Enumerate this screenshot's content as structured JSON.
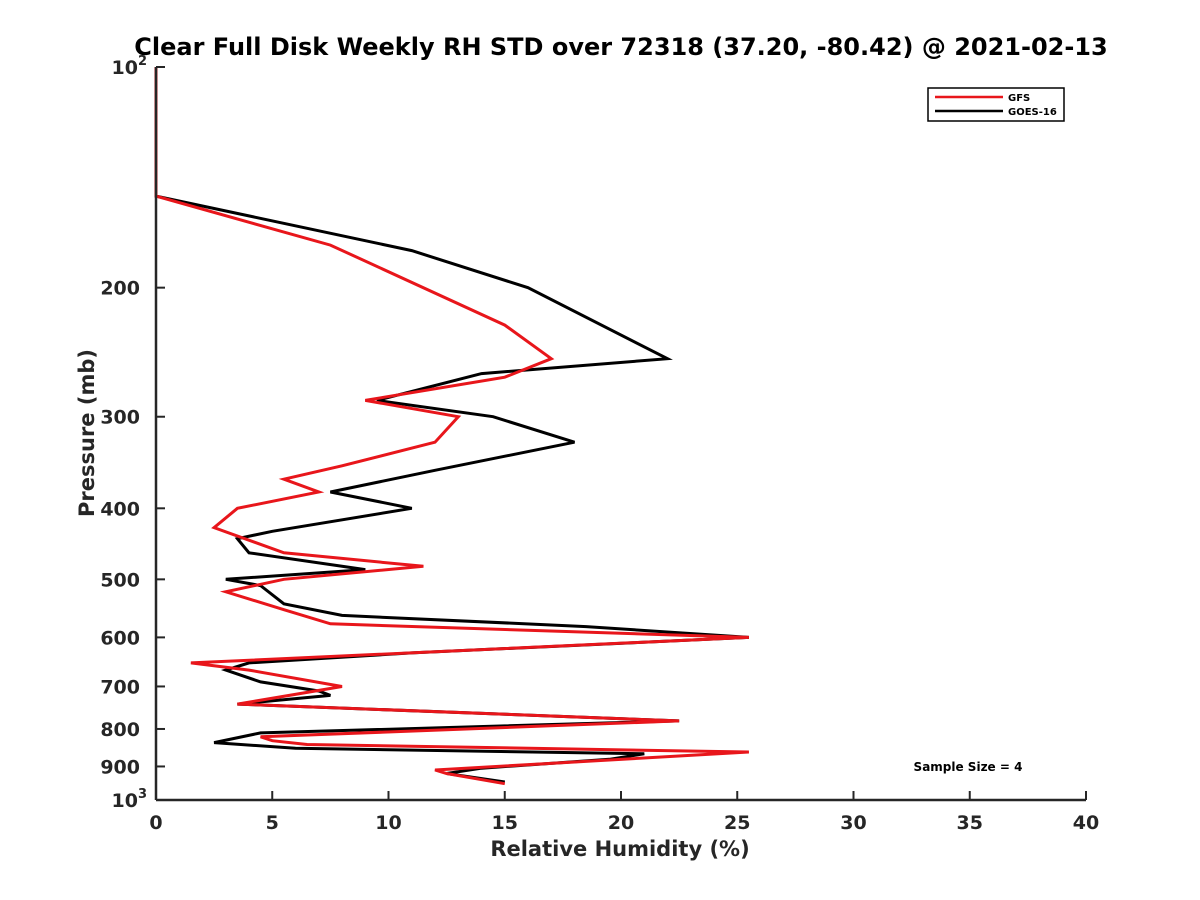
{
  "chart_data": {
    "type": "line",
    "title": "Clear Full Disk Weekly RH STD over 72318 (37.20, -80.42) @ 2021-02-13",
    "xlabel": "Relative Humidity (%)",
    "ylabel": "Pressure (mb)",
    "xlim": [
      0,
      40
    ],
    "ylim": [
      100,
      1000
    ],
    "y_scale": "log",
    "y_reversed": true,
    "x_ticks": [
      "0",
      "5",
      "10",
      "15",
      "20",
      "25",
      "30",
      "35",
      "40"
    ],
    "y_ticks": [
      {
        "value": 100,
        "label": "10",
        "exp": "2"
      },
      {
        "value": 200,
        "label": "200",
        "exp": ""
      },
      {
        "value": 300,
        "label": "300",
        "exp": ""
      },
      {
        "value": 400,
        "label": "400",
        "exp": ""
      },
      {
        "value": 500,
        "label": "500",
        "exp": ""
      },
      {
        "value": 600,
        "label": "600",
        "exp": ""
      },
      {
        "value": 700,
        "label": "700",
        "exp": ""
      },
      {
        "value": 800,
        "label": "800",
        "exp": ""
      },
      {
        "value": 900,
        "label": "900",
        "exp": ""
      },
      {
        "value": 1000,
        "label": "10",
        "exp": "3"
      }
    ],
    "legend_position": "top-right",
    "annotation": "Sample Size = 4",
    "series": [
      {
        "name": "GFS",
        "color": "#e8161b",
        "points": [
          [
            0,
            100
          ],
          [
            0,
            150
          ],
          [
            7.5,
            175
          ],
          [
            15,
            225
          ],
          [
            17,
            250
          ],
          [
            15,
            265
          ],
          [
            9,
            285
          ],
          [
            13,
            300
          ],
          [
            12,
            325
          ],
          [
            8,
            350
          ],
          [
            5.5,
            365
          ],
          [
            7,
            380
          ],
          [
            3.5,
            400
          ],
          [
            2.5,
            425
          ],
          [
            5.5,
            460
          ],
          [
            11.5,
            480
          ],
          [
            5.5,
            500
          ],
          [
            3,
            520
          ],
          [
            5.5,
            550
          ],
          [
            7.5,
            575
          ],
          [
            25.5,
            600
          ],
          [
            1.5,
            650
          ],
          [
            4,
            665
          ],
          [
            8,
            700
          ],
          [
            3.5,
            740
          ],
          [
            22.5,
            780
          ],
          [
            4.5,
            820
          ],
          [
            5,
            830
          ],
          [
            6.5,
            840
          ],
          [
            25.5,
            860
          ],
          [
            12,
            910
          ],
          [
            12.5,
            920
          ],
          [
            15,
            950
          ]
        ]
      },
      {
        "name": "GOES-16",
        "color": "#000000",
        "points": [
          [
            0,
            100
          ],
          [
            0,
            150
          ],
          [
            11,
            178
          ],
          [
            16,
            200
          ],
          [
            22,
            250
          ],
          [
            14,
            262
          ],
          [
            9.5,
            285
          ],
          [
            14.5,
            300
          ],
          [
            18,
            325
          ],
          [
            12,
            355
          ],
          [
            7.5,
            380
          ],
          [
            11,
            400
          ],
          [
            5,
            430
          ],
          [
            3.5,
            440
          ],
          [
            4,
            460
          ],
          [
            9,
            485
          ],
          [
            3,
            500
          ],
          [
            4.5,
            510
          ],
          [
            5.5,
            540
          ],
          [
            8,
            560
          ],
          [
            18.5,
            580
          ],
          [
            25.5,
            600
          ],
          [
            11,
            630
          ],
          [
            4,
            650
          ],
          [
            3,
            665
          ],
          [
            4.5,
            690
          ],
          [
            7,
            710
          ],
          [
            7.5,
            720
          ],
          [
            3.5,
            740
          ],
          [
            22.5,
            780
          ],
          [
            4.5,
            810
          ],
          [
            2.5,
            835
          ],
          [
            6,
            850
          ],
          [
            21,
            865
          ],
          [
            19.5,
            880
          ],
          [
            14,
            905
          ],
          [
            12.5,
            920
          ],
          [
            15,
            945
          ]
        ]
      }
    ]
  }
}
